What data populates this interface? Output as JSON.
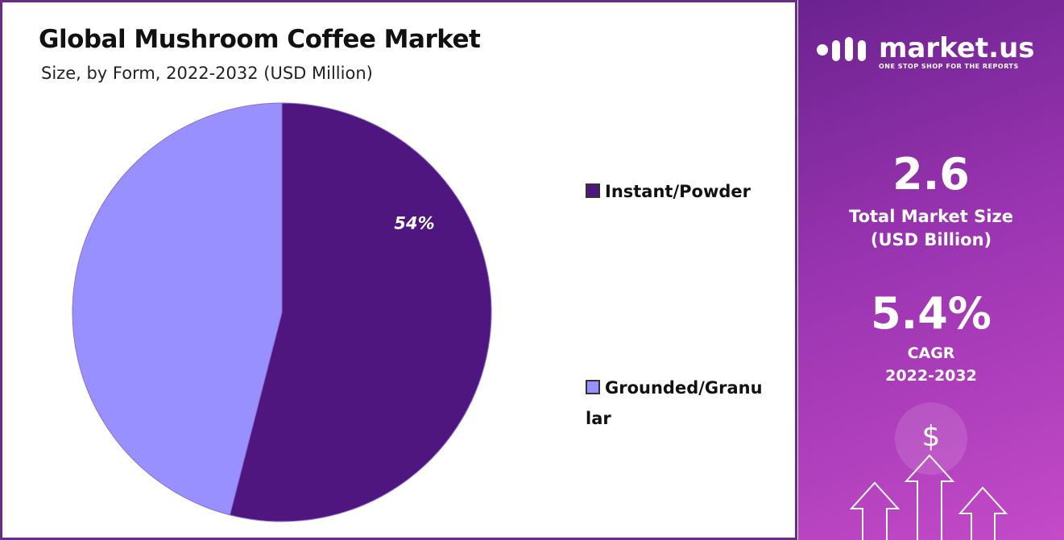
{
  "chart_data": {
    "type": "pie",
    "title": "Global Mushroom Coffee Market",
    "subtitle": "Size, by Form, 2022-2032 (USD Million)",
    "categories": [
      "Instant/Powder",
      "Grounded/Granular"
    ],
    "values": [
      54,
      46
    ],
    "value_labels": [
      "54%",
      null
    ],
    "colors": [
      "#4f1680",
      "#9890fe"
    ],
    "legend": "right"
  },
  "sidebar": {
    "brand": "market.us",
    "tagline": "ONE STOP SHOP FOR THE REPORTS",
    "market_size": "2.6",
    "market_size_label": "Total Market Size",
    "market_size_unit": "(USD Billion)",
    "cagr": "5.4%",
    "cagr_label": "CAGR",
    "cagr_period": "2022-2032",
    "currency_symbol": "$"
  }
}
